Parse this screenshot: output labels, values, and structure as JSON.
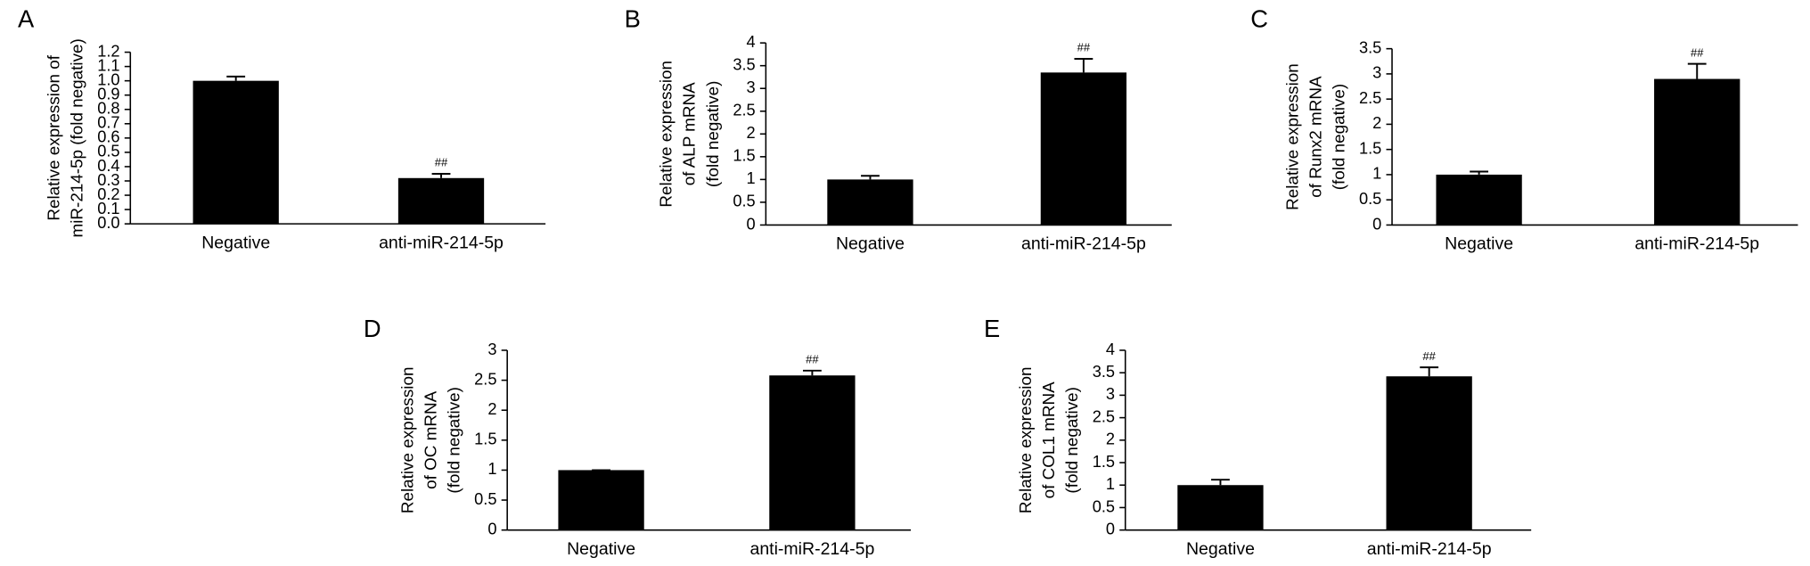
{
  "chart_data": [
    {
      "type": "bar",
      "panel": "A",
      "y_label": [
        "Relative expression of",
        "miR-214-5p (fold negative)"
      ],
      "categories": [
        "Negative",
        "anti-miR-214-5p"
      ],
      "values": [
        1.0,
        0.32
      ],
      "errors": [
        0.03,
        0.03
      ],
      "annotations": [
        null,
        "##"
      ],
      "color": "#000000",
      "ylim": [
        0,
        1.2
      ],
      "yticks": [
        {
          "value": 0,
          "label": "0.0"
        },
        0.1,
        0.2,
        0.3,
        0.4,
        0.5,
        0.6,
        0.7,
        0.8,
        0.9,
        {
          "value": 1,
          "label": "1.0"
        },
        1.1,
        1.2
      ]
    },
    {
      "type": "bar",
      "panel": "B",
      "y_label": [
        "Relative expression",
        "of ALP mRNA",
        "(fold negative)"
      ],
      "categories": [
        "Negative",
        "anti-miR-214-5p"
      ],
      "values": [
        1.0,
        3.35
      ],
      "errors": [
        0.08,
        0.3
      ],
      "annotations": [
        null,
        "##"
      ],
      "color": "#000000",
      "ylim": [
        0,
        4
      ],
      "yticks": [
        0,
        0.5,
        1,
        1.5,
        2,
        2.5,
        3,
        3.5,
        4
      ]
    },
    {
      "type": "bar",
      "panel": "C",
      "y_label": [
        "Relative expression",
        "of Runx2 mRNA",
        "(fold negative)"
      ],
      "categories": [
        "Negative",
        "anti-miR-214-5p"
      ],
      "values": [
        1.0,
        2.9
      ],
      "errors": [
        0.06,
        0.3
      ],
      "annotations": [
        null,
        "##"
      ],
      "color": "#000000",
      "ylim": [
        0,
        3.5
      ],
      "yticks": [
        0,
        0.5,
        1,
        1.5,
        2,
        2.5,
        3,
        3.5
      ]
    },
    {
      "type": "bar",
      "panel": "D",
      "y_label": [
        "Relative expression",
        "of OC mRNA",
        "(fold negative)"
      ],
      "categories": [
        "Negative",
        "anti-miR-214-5p"
      ],
      "values": [
        1.0,
        2.58
      ],
      "errors": [
        0,
        0.08
      ],
      "annotations": [
        null,
        "##"
      ],
      "color": "#000000",
      "ylim": [
        0,
        3
      ],
      "yticks": [
        0,
        0.5,
        1,
        1.5,
        2,
        2.5,
        3
      ]
    },
    {
      "type": "bar",
      "panel": "E",
      "y_label": [
        "Relative expression",
        "of COL1 mRNA",
        "(fold negative)"
      ],
      "categories": [
        "Negative",
        "anti-miR-214-5p"
      ],
      "values": [
        1.0,
        3.42
      ],
      "errors": [
        0.12,
        0.2
      ],
      "annotations": [
        null,
        "##"
      ],
      "color": "#000000",
      "ylim": [
        0,
        4
      ],
      "yticks": [
        0,
        0.5,
        1,
        1.5,
        2,
        2.5,
        3,
        3.5,
        4
      ]
    }
  ]
}
